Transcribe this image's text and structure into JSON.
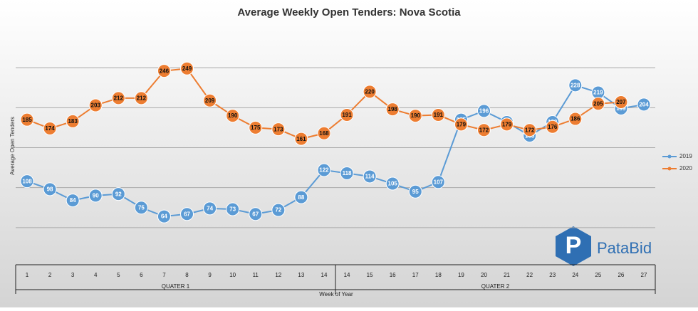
{
  "chart_data": {
    "type": "line",
    "title": "Average Weekly Open Tenders: Nova Scotia",
    "y_label": "Average Open Tenders",
    "x_label": "Week of Year",
    "categories": [
      1,
      2,
      3,
      4,
      5,
      6,
      7,
      8,
      9,
      10,
      11,
      12,
      13,
      14,
      14,
      15,
      16,
      17,
      18,
      19,
      20,
      21,
      22,
      23,
      24,
      25,
      26,
      27
    ],
    "category_groups": [
      "QUATER 1",
      "QUATER 2"
    ],
    "series": [
      {
        "name": "2019",
        "color": "#5b9bd5",
        "values": [
          108,
          98,
          84,
          90,
          92,
          75,
          64,
          67,
          74,
          73,
          67,
          72,
          88,
          122,
          118,
          114,
          105,
          95,
          107,
          185,
          196,
          182,
          165,
          182,
          228,
          219,
          199,
          204
        ]
      },
      {
        "name": "2020",
        "color": "#ed7d31",
        "values": [
          185,
          174,
          183,
          203,
          212,
          212,
          246,
          249,
          209,
          190,
          175,
          173,
          161,
          168,
          191,
          220,
          198,
          190,
          191,
          179,
          172,
          179,
          172,
          176,
          186,
          205,
          207,
          null
        ]
      }
    ],
    "ylim": [
      0,
      300
    ],
    "yticks": [
      50,
      100,
      150,
      200,
      250
    ],
    "grid": true,
    "legend": "right",
    "logo": "PataBid"
  }
}
